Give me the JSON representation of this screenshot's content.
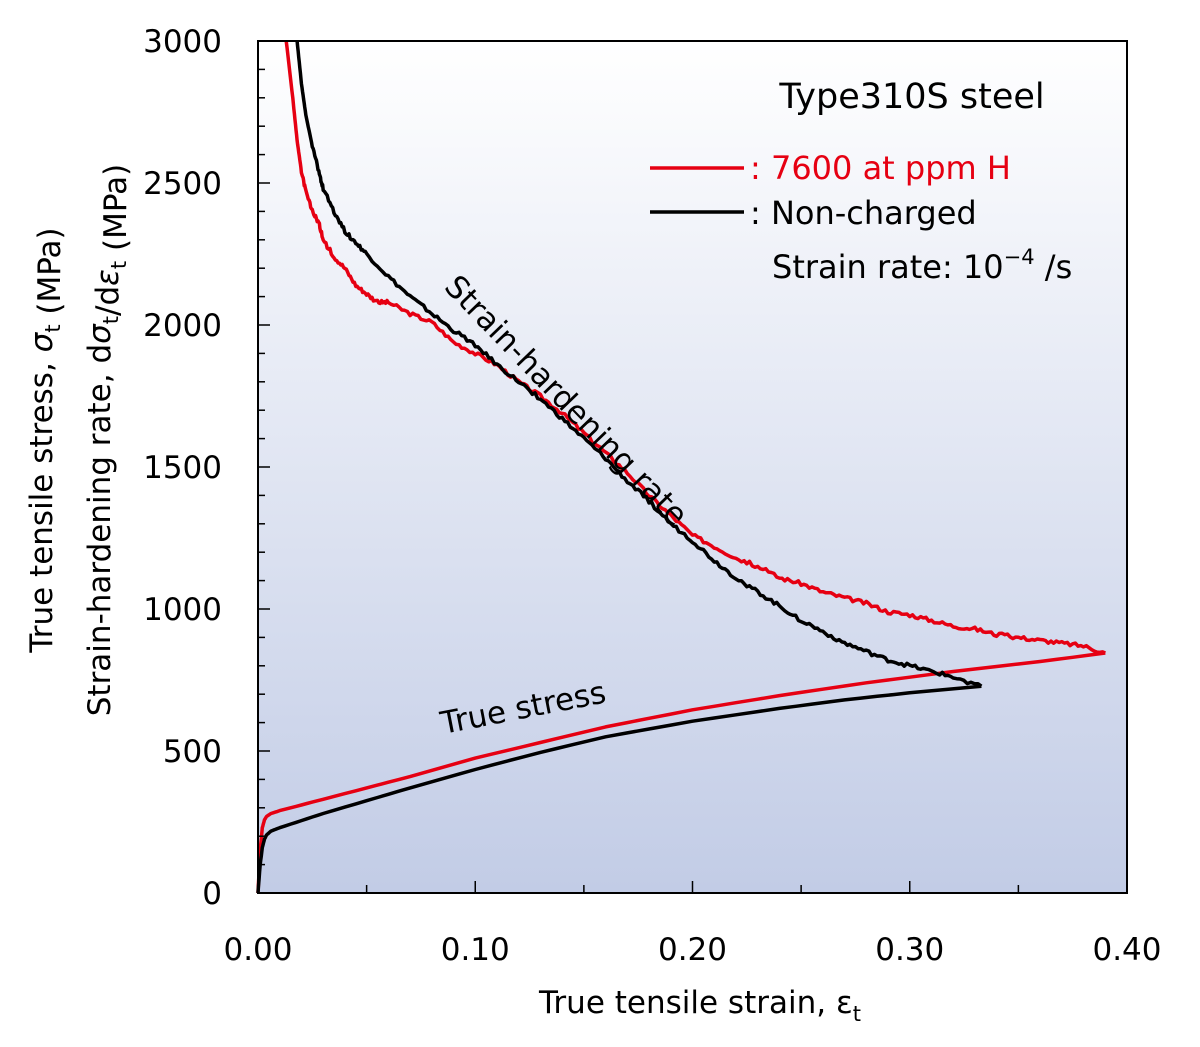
{
  "chart_data": {
    "type": "line",
    "title": "Type310S steel",
    "xlabel": "True tensile strain, ε",
    "xlabel_sub": "t",
    "ylabel_lines": [
      {
        "parts": [
          "True tensile stress, ",
          "σ",
          "t",
          " (MPa)"
        ]
      },
      {
        "parts": [
          "Strain-hardening rate, d",
          "σ",
          "t",
          "/d",
          "ε",
          "t",
          " (MPa)"
        ]
      }
    ],
    "xlim": [
      0,
      0.4
    ],
    "ylim": [
      0,
      3000
    ],
    "x_ticks": [
      "0.00",
      "0.10",
      "0.20",
      "0.30",
      "0.40"
    ],
    "y_ticks": [
      "0",
      "500",
      "1000",
      "1500",
      "2000",
      "2500",
      "3000"
    ],
    "legend": {
      "entries": [
        {
          "label": ": 7600 at ppm H",
          "color": "#e60012"
        },
        {
          "label": ": Non-charged",
          "color": "#000000"
        }
      ],
      "note_prefix": "Strain rate: 10",
      "note_exp": "−4",
      "note_suffix": " /s"
    },
    "annotations": {
      "hardening": "Strain-hardening rate",
      "stress": "True stress"
    },
    "series": [
      {
        "name": "7600 at ppm H",
        "curve": "true-stress",
        "color": "#e60012",
        "x": [
          0,
          0.001,
          0.002,
          0.003,
          0.004,
          0.006,
          0.01,
          0.02,
          0.03,
          0.05,
          0.07,
          0.1,
          0.13,
          0.16,
          0.2,
          0.24,
          0.28,
          0.32,
          0.36,
          0.39
        ],
        "y": [
          0,
          150,
          230,
          258,
          270,
          280,
          290,
          310,
          330,
          370,
          410,
          475,
          530,
          585,
          645,
          695,
          740,
          780,
          815,
          845
        ]
      },
      {
        "name": "Non-charged",
        "curve": "true-stress",
        "color": "#000000",
        "x": [
          0,
          0.001,
          0.002,
          0.003,
          0.004,
          0.006,
          0.01,
          0.02,
          0.03,
          0.05,
          0.07,
          0.1,
          0.13,
          0.16,
          0.2,
          0.24,
          0.27,
          0.3,
          0.333
        ],
        "y": [
          0,
          100,
          160,
          190,
          205,
          218,
          230,
          255,
          280,
          325,
          370,
          435,
          495,
          550,
          605,
          650,
          680,
          705,
          728
        ]
      },
      {
        "name": "7600 at ppm H",
        "curve": "strain-hardening-rate",
        "color": "#e60012",
        "x": [
          0.013,
          0.016,
          0.018,
          0.02,
          0.022,
          0.025,
          0.028,
          0.03,
          0.035,
          0.04,
          0.045,
          0.05,
          0.055,
          0.06,
          0.07,
          0.08,
          0.09,
          0.1,
          0.11,
          0.12,
          0.13,
          0.14,
          0.15,
          0.16,
          0.17,
          0.18,
          0.19,
          0.2,
          0.21,
          0.22,
          0.23,
          0.24,
          0.25,
          0.26,
          0.27,
          0.28,
          0.29,
          0.3,
          0.31,
          0.32,
          0.33,
          0.34,
          0.35,
          0.36,
          0.37,
          0.38,
          0.39
        ],
        "y": [
          3000,
          2800,
          2650,
          2540,
          2470,
          2400,
          2360,
          2300,
          2240,
          2200,
          2140,
          2110,
          2080,
          2080,
          2040,
          2010,
          1940,
          1900,
          1860,
          1800,
          1750,
          1690,
          1620,
          1550,
          1480,
          1400,
          1330,
          1260,
          1220,
          1180,
          1150,
          1110,
          1090,
          1060,
          1040,
          1020,
          990,
          980,
          960,
          940,
          930,
          910,
          900,
          890,
          880,
          870,
          845
        ]
      },
      {
        "name": "Non-charged",
        "curve": "strain-hardening-rate",
        "color": "#000000",
        "x": [
          0.018,
          0.02,
          0.022,
          0.025,
          0.028,
          0.03,
          0.035,
          0.04,
          0.045,
          0.05,
          0.06,
          0.07,
          0.08,
          0.09,
          0.1,
          0.11,
          0.12,
          0.13,
          0.14,
          0.15,
          0.16,
          0.17,
          0.18,
          0.19,
          0.2,
          0.21,
          0.22,
          0.23,
          0.24,
          0.25,
          0.26,
          0.27,
          0.28,
          0.29,
          0.3,
          0.31,
          0.32,
          0.333
        ],
        "y": [
          3000,
          2850,
          2740,
          2630,
          2540,
          2480,
          2400,
          2330,
          2290,
          2250,
          2170,
          2100,
          2040,
          1980,
          1930,
          1860,
          1800,
          1740,
          1670,
          1600,
          1530,
          1450,
          1380,
          1300,
          1240,
          1170,
          1110,
          1060,
          1010,
          960,
          920,
          880,
          850,
          820,
          800,
          780,
          760,
          728
        ]
      }
    ]
  }
}
